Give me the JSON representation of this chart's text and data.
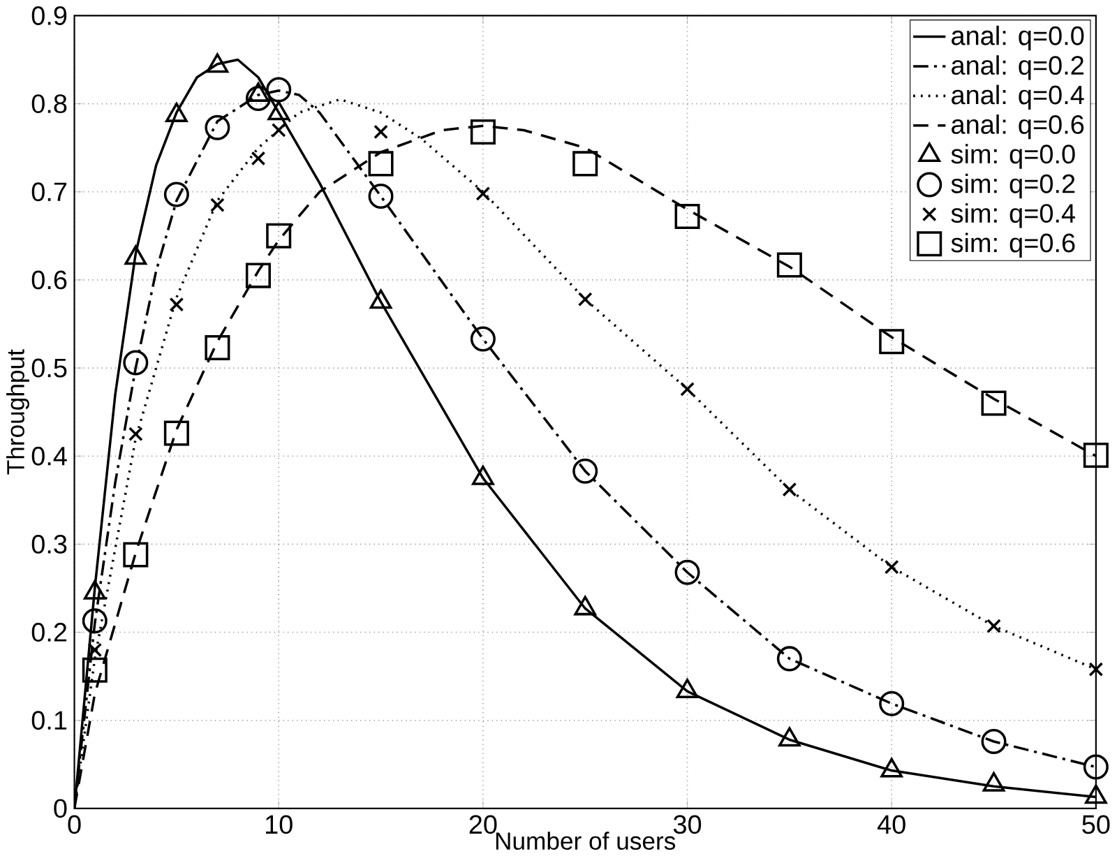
{
  "chart_data": {
    "type": "line",
    "xlabel": "Number of users",
    "ylabel": "Throughput",
    "xlim": [
      0,
      50
    ],
    "ylim": [
      0,
      0.9
    ],
    "xticks": [
      0,
      10,
      20,
      30,
      40,
      50
    ],
    "yticks": [
      0,
      0.1,
      0.2,
      0.3,
      0.4,
      0.5,
      0.6,
      0.7,
      0.8,
      0.9
    ],
    "grid": true,
    "legend": "top right",
    "series": [
      {
        "name": "anal: q=0.0",
        "color": "#000000",
        "line_style": "solid",
        "marker": "none",
        "x": [
          0,
          1,
          2,
          3,
          4,
          5,
          6,
          7,
          8,
          9,
          10,
          12,
          15,
          20,
          25,
          30,
          35,
          40,
          45,
          50
        ],
        "values": [
          0,
          0.25,
          0.47,
          0.63,
          0.73,
          0.79,
          0.83,
          0.845,
          0.85,
          0.83,
          0.79,
          0.71,
          0.575,
          0.375,
          0.227,
          0.133,
          0.078,
          0.043,
          0.025,
          0.013
        ]
      },
      {
        "name": "anal: q=0.2",
        "color": "#000000",
        "line_style": "dashdot",
        "marker": "none",
        "x": [
          0,
          1,
          2,
          3,
          4,
          5,
          7,
          9,
          10,
          11,
          12,
          15,
          20,
          25,
          30,
          35,
          40,
          45,
          50
        ],
        "values": [
          0,
          0.21,
          0.37,
          0.5,
          0.61,
          0.69,
          0.78,
          0.81,
          0.815,
          0.81,
          0.79,
          0.695,
          0.533,
          0.383,
          0.268,
          0.17,
          0.119,
          0.076,
          0.047
        ]
      },
      {
        "name": "anal: q=0.4",
        "color": "#000000",
        "line_style": "dotted",
        "marker": "none",
        "x": [
          0,
          1,
          3,
          5,
          7,
          9,
          11,
          13,
          15,
          17,
          20,
          25,
          30,
          35,
          40,
          45,
          50
        ],
        "values": [
          0,
          0.17,
          0.42,
          0.58,
          0.69,
          0.75,
          0.79,
          0.805,
          0.79,
          0.76,
          0.7,
          0.578,
          0.476,
          0.362,
          0.274,
          0.207,
          0.158
        ]
      },
      {
        "name": "anal: q=0.6",
        "color": "#000000",
        "line_style": "dashed",
        "marker": "none",
        "x": [
          0,
          1,
          3,
          5,
          7,
          9,
          10,
          12,
          15,
          18,
          20,
          22,
          25,
          30,
          35,
          40,
          45,
          50
        ],
        "values": [
          0,
          0.13,
          0.29,
          0.43,
          0.53,
          0.61,
          0.645,
          0.7,
          0.745,
          0.77,
          0.775,
          0.77,
          0.75,
          0.68,
          0.615,
          0.535,
          0.465,
          0.4
        ]
      },
      {
        "name": "sim: q=0.0",
        "type": "scatter",
        "color": "#000000",
        "marker": "triangle",
        "x": [
          1,
          3,
          5,
          7,
          9,
          10,
          15,
          20,
          25,
          30,
          35,
          40,
          45,
          50
        ],
        "values": [
          0.245,
          0.625,
          0.787,
          0.843,
          0.81,
          0.789,
          0.575,
          0.375,
          0.227,
          0.133,
          0.078,
          0.043,
          0.027,
          0.013
        ]
      },
      {
        "name": "sim: q=0.2",
        "type": "scatter",
        "color": "#000000",
        "marker": "circle",
        "x": [
          1,
          3,
          5,
          7,
          9,
          10,
          15,
          20,
          25,
          30,
          35,
          40,
          45,
          50
        ],
        "values": [
          0.213,
          0.506,
          0.697,
          0.773,
          0.806,
          0.816,
          0.695,
          0.533,
          0.383,
          0.268,
          0.17,
          0.119,
          0.076,
          0.047
        ]
      },
      {
        "name": "sim: q=0.4",
        "type": "scatter",
        "color": "#000000",
        "marker": "cross",
        "x": [
          1,
          3,
          5,
          7,
          9,
          10,
          15,
          20,
          25,
          30,
          35,
          40,
          45,
          50
        ],
        "values": [
          0.18,
          0.425,
          0.572,
          0.685,
          0.738,
          0.77,
          0.768,
          0.698,
          0.578,
          0.476,
          0.362,
          0.274,
          0.207,
          0.158
        ]
      },
      {
        "name": "sim: q=0.6",
        "type": "scatter",
        "color": "#000000",
        "marker": "square",
        "x": [
          1,
          3,
          5,
          7,
          9,
          10,
          15,
          20,
          25,
          30,
          35,
          40,
          45,
          50
        ],
        "values": [
          0.157,
          0.288,
          0.426,
          0.523,
          0.605,
          0.65,
          0.732,
          0.768,
          0.732,
          0.672,
          0.617,
          0.53,
          0.46,
          0.401
        ]
      }
    ]
  }
}
